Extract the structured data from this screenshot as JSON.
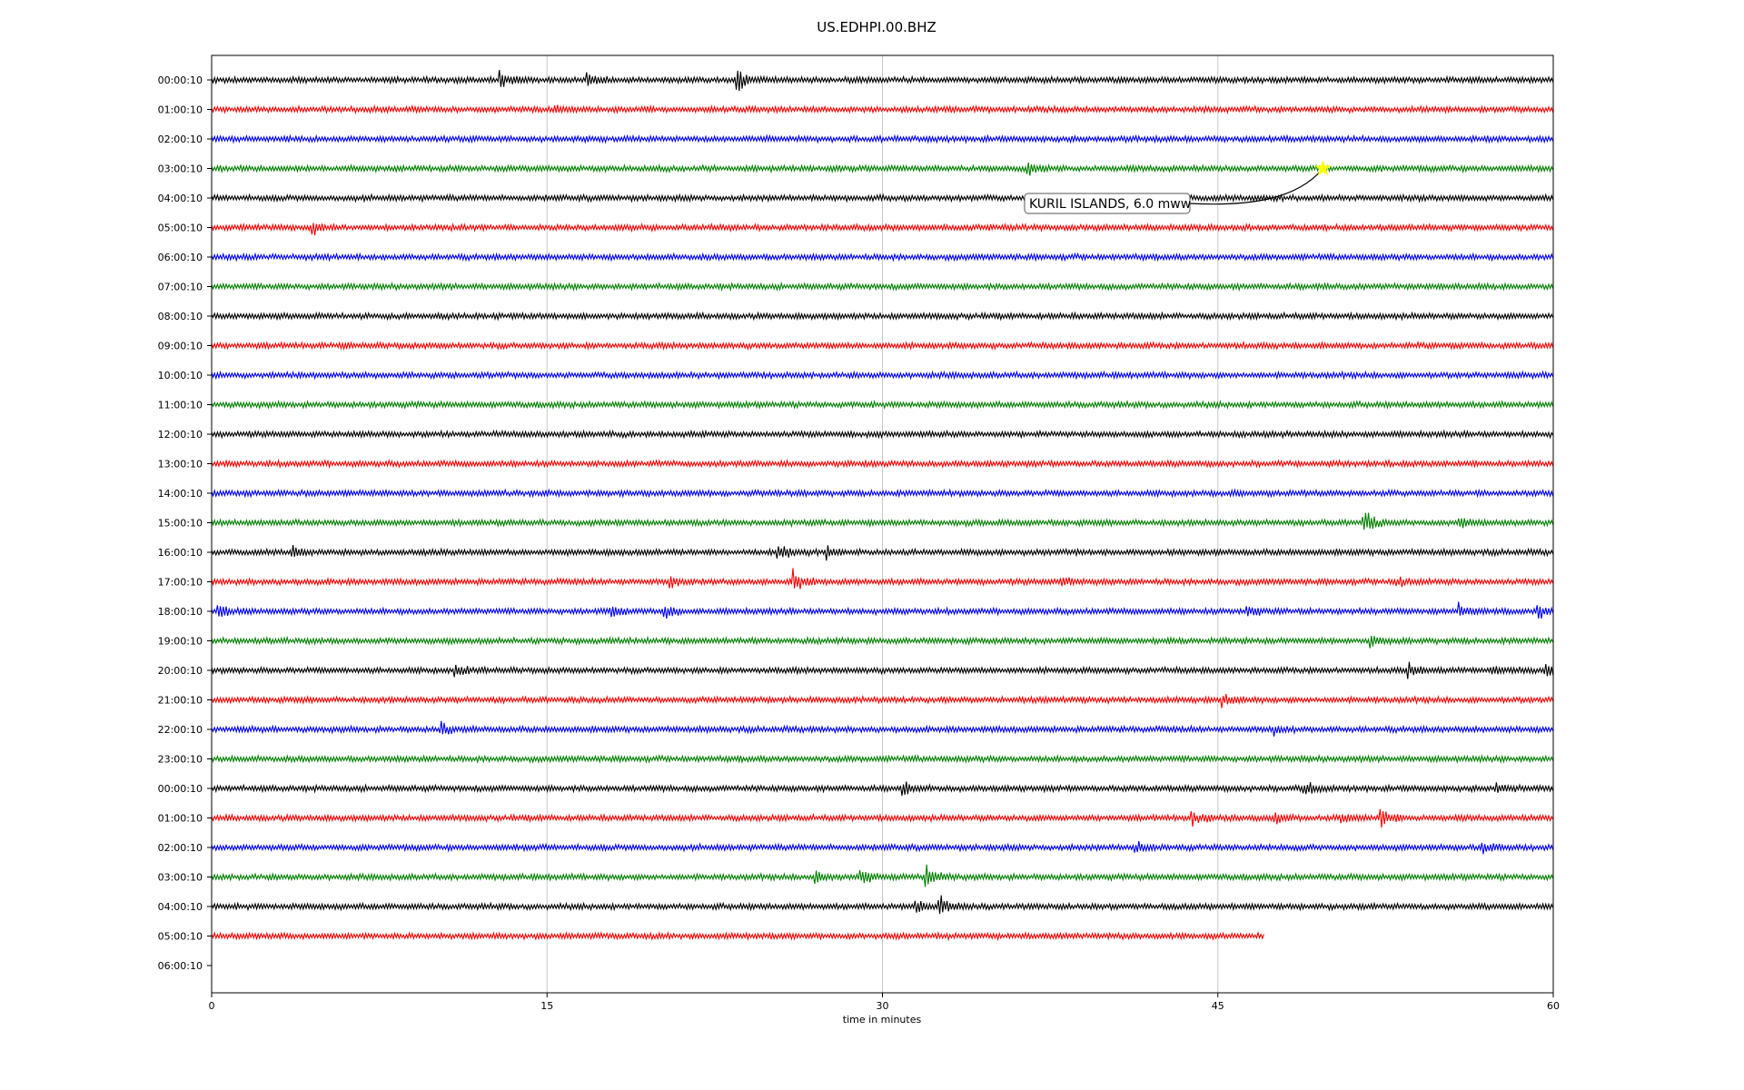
{
  "chart_data": {
    "type": "line",
    "title": "US.EDHPI.00.BHZ",
    "xlabel": "time in minutes",
    "ylabel": "",
    "xlim": [
      0,
      60
    ],
    "x_ticks": [
      "0",
      "15",
      "30",
      "45",
      "60"
    ],
    "x_tick_values": [
      0,
      15,
      30,
      45,
      60
    ],
    "grid": "vertical lines at x ticks",
    "trace_colors": [
      "#000000",
      "#ff0000",
      "#0000ff",
      "#008000"
    ],
    "rows": [
      {
        "label": "00:00:10",
        "end_minute": 60
      },
      {
        "label": "01:00:10",
        "end_minute": 60
      },
      {
        "label": "02:00:10",
        "end_minute": 60
      },
      {
        "label": "03:00:10",
        "end_minute": 60
      },
      {
        "label": "04:00:10",
        "end_minute": 60
      },
      {
        "label": "05:00:10",
        "end_minute": 60
      },
      {
        "label": "06:00:10",
        "end_minute": 60
      },
      {
        "label": "07:00:10",
        "end_minute": 60
      },
      {
        "label": "08:00:10",
        "end_minute": 60
      },
      {
        "label": "09:00:10",
        "end_minute": 60
      },
      {
        "label": "10:00:10",
        "end_minute": 60
      },
      {
        "label": "11:00:10",
        "end_minute": 60
      },
      {
        "label": "12:00:10",
        "end_minute": 60
      },
      {
        "label": "13:00:10",
        "end_minute": 60
      },
      {
        "label": "14:00:10",
        "end_minute": 60
      },
      {
        "label": "15:00:10",
        "end_minute": 60
      },
      {
        "label": "16:00:10",
        "end_minute": 60
      },
      {
        "label": "17:00:10",
        "end_minute": 60
      },
      {
        "label": "18:00:10",
        "end_minute": 60
      },
      {
        "label": "19:00:10",
        "end_minute": 60
      },
      {
        "label": "20:00:10",
        "end_minute": 60
      },
      {
        "label": "21:00:10",
        "end_minute": 60
      },
      {
        "label": "22:00:10",
        "end_minute": 60
      },
      {
        "label": "23:00:10",
        "end_minute": 60
      },
      {
        "label": "00:00:10",
        "end_minute": 60
      },
      {
        "label": "01:00:10",
        "end_minute": 60
      },
      {
        "label": "02:00:10",
        "end_minute": 60
      },
      {
        "label": "03:00:10",
        "end_minute": 60
      },
      {
        "label": "04:00:10",
        "end_minute": 60
      },
      {
        "label": "05:00:10",
        "end_minute": 47.1
      },
      {
        "label": "06:00:10",
        "end_minute": 0
      }
    ],
    "events": [
      {
        "row": 0,
        "minute": 12.9,
        "amp": 12
      },
      {
        "row": 0,
        "minute": 16.8,
        "amp": 10
      },
      {
        "row": 0,
        "minute": 23.5,
        "amp": 16
      },
      {
        "row": 1,
        "minute": 15.3,
        "amp": 5
      },
      {
        "row": 3,
        "minute": 36.5,
        "amp": 10
      },
      {
        "row": 5,
        "minute": 4.5,
        "amp": 8
      },
      {
        "row": 15,
        "minute": 51.5,
        "amp": 18
      },
      {
        "row": 15,
        "minute": 55.8,
        "amp": 7
      },
      {
        "row": 16,
        "minute": 3.6,
        "amp": 7
      },
      {
        "row": 16,
        "minute": 25.3,
        "amp": 12
      },
      {
        "row": 16,
        "minute": 27.5,
        "amp": 7
      },
      {
        "row": 17,
        "minute": 20.5,
        "amp": 7
      },
      {
        "row": 17,
        "minute": 26.0,
        "amp": 14
      },
      {
        "row": 17,
        "minute": 38.0,
        "amp": 6
      },
      {
        "row": 17,
        "minute": 53.0,
        "amp": 6
      },
      {
        "row": 18,
        "minute": 0.3,
        "amp": 8
      },
      {
        "row": 18,
        "minute": 17.8,
        "amp": 8
      },
      {
        "row": 18,
        "minute": 20.2,
        "amp": 8
      },
      {
        "row": 18,
        "minute": 46.3,
        "amp": 8
      },
      {
        "row": 18,
        "minute": 55.8,
        "amp": 10
      },
      {
        "row": 18,
        "minute": 59.3,
        "amp": 10
      },
      {
        "row": 19,
        "minute": 51.8,
        "amp": 8
      },
      {
        "row": 20,
        "minute": 10.9,
        "amp": 7
      },
      {
        "row": 20,
        "minute": 53.5,
        "amp": 9
      },
      {
        "row": 20,
        "minute": 57.3,
        "amp": 8
      },
      {
        "row": 20,
        "minute": 59.6,
        "amp": 9
      },
      {
        "row": 21,
        "minute": 45.2,
        "amp": 7
      },
      {
        "row": 22,
        "minute": 10.2,
        "amp": 9
      },
      {
        "row": 22,
        "minute": 47.5,
        "amp": 5
      },
      {
        "row": 24,
        "minute": 30.9,
        "amp": 8
      },
      {
        "row": 24,
        "minute": 48.8,
        "amp": 10
      },
      {
        "row": 24,
        "minute": 57.4,
        "amp": 7
      },
      {
        "row": 25,
        "minute": 43.8,
        "amp": 9
      },
      {
        "row": 25,
        "minute": 47.5,
        "amp": 8
      },
      {
        "row": 25,
        "minute": 50.5,
        "amp": 8
      },
      {
        "row": 25,
        "minute": 52.3,
        "amp": 12
      },
      {
        "row": 26,
        "minute": 41.3,
        "amp": 7
      },
      {
        "row": 26,
        "minute": 56.8,
        "amp": 9
      },
      {
        "row": 27,
        "minute": 27.0,
        "amp": 8
      },
      {
        "row": 27,
        "minute": 29.0,
        "amp": 14
      },
      {
        "row": 27,
        "minute": 31.9,
        "amp": 18
      },
      {
        "row": 28,
        "minute": 31.5,
        "amp": 8
      },
      {
        "row": 28,
        "minute": 32.5,
        "amp": 14
      }
    ],
    "annotation": {
      "text": "KURIL ISLANDS, 6.0 mww",
      "row": 3,
      "minute": 49.7,
      "star_color": "#ffff00"
    }
  }
}
